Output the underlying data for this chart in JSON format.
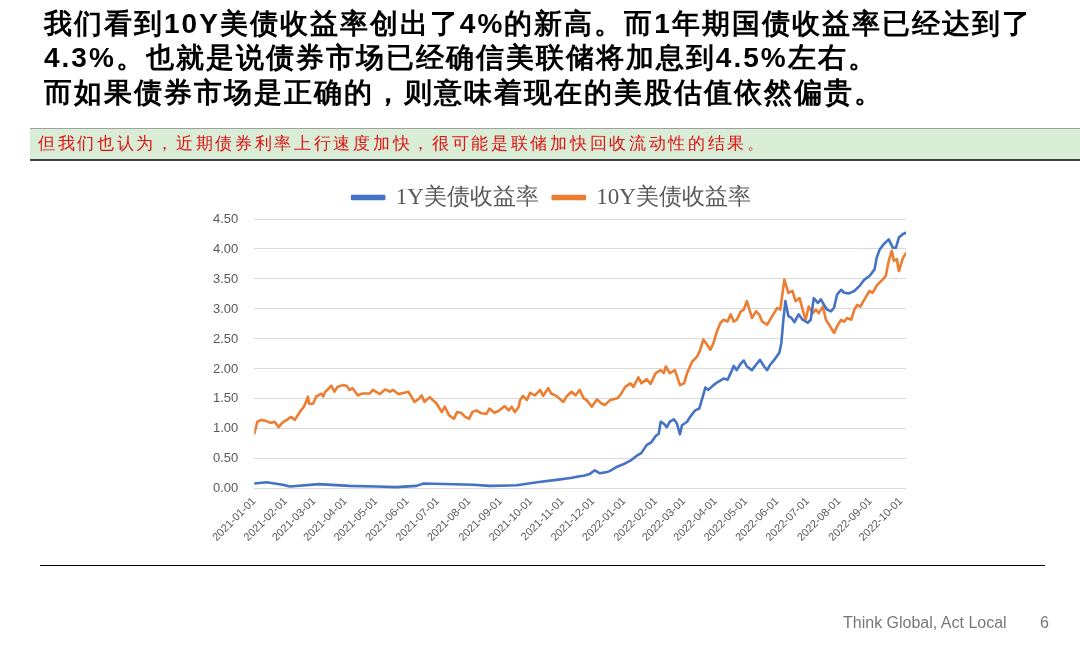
{
  "chart_data": {
    "type": "line",
    "title": "我们看到10Y美债收益率创出了4%的新高。而1年期国债收益率已经达到了4.3%。也就是说债券市场已经确信美联储将加息到4.5%左右。",
    "subtitle": "而如果债券市场是正确的，则意味着现在的美股估值依然偏贵。",
    "annotations": [
      "但我们也认为，近期债券利率上行速度加快，很可能是联储加快回收流动性的结果。",
      "Think Global, Act Local",
      "6"
    ],
    "legend": "top",
    "grid": "y",
    "xlim": [
      "2021-01-01",
      "2022-10-06"
    ],
    "xticks": [
      "2021-01-01",
      "2021-02-01",
      "2021-03-01",
      "2021-04-01",
      "2021-05-01",
      "2021-06-01",
      "2021-07-01",
      "2021-08-01",
      "2021-09-01",
      "2021-10-01",
      "2021-11-01",
      "2021-12-01",
      "2022-01-01",
      "2022-02-01",
      "2022-03-01",
      "2022-04-01",
      "2022-05-01",
      "2022-06-01",
      "2022-07-01",
      "2022-08-01",
      "2022-09-01",
      "2022-10-01"
    ],
    "ylim": [
      0,
      4.5
    ],
    "yticks": [
      {
        "value": 0,
        "label": "0.00"
      },
      {
        "value": 0.5,
        "label": "0.50"
      },
      {
        "value": 1,
        "label": "1.00"
      },
      {
        "value": 1.5,
        "label": "1.50"
      },
      {
        "value": 2,
        "label": "2.00"
      },
      {
        "value": 2.5,
        "label": "2.50"
      },
      {
        "value": 3,
        "label": "3.00"
      },
      {
        "value": 3.5,
        "label": "3.50"
      },
      {
        "value": 4,
        "label": "4.00"
      },
      {
        "value": 4.5,
        "label": "4.50"
      }
    ],
    "series": [
      {
        "name": "1Y美债收益率",
        "color": "#4472c4",
        "x": [
          "2021-01-01",
          "2021-01-13",
          "2021-01-29",
          "2021-02-05",
          "2021-03-06",
          "2021-04-05",
          "2021-05-01",
          "2021-05-21",
          "2021-06-10",
          "2021-06-17",
          "2021-08-05",
          "2021-08-21",
          "2021-09-17",
          "2021-10-07",
          "2021-10-26",
          "2021-11-09",
          "2021-11-18",
          "2021-11-22",
          "2021-11-28",
          "2021-12-03",
          "2021-12-08",
          "2021-12-15",
          "2021-12-18",
          "2021-12-25",
          "2021-12-31",
          "2022-01-07",
          "2022-01-14",
          "2022-01-18",
          "2022-01-23",
          "2022-01-28",
          "2022-02-01",
          "2022-02-04",
          "2022-02-06",
          "2022-02-09",
          "2022-02-12",
          "2022-02-15",
          "2022-02-19",
          "2022-02-22",
          "2022-02-25",
          "2022-02-27",
          "2022-03-04",
          "2022-03-07",
          "2022-03-12",
          "2022-03-16",
          "2022-03-19",
          "2022-03-22",
          "2022-03-25",
          "2022-03-30",
          "2022-04-04",
          "2022-04-09",
          "2022-04-13",
          "2022-04-16",
          "2022-04-19",
          "2022-04-22",
          "2022-04-26",
          "2022-04-29",
          "2022-05-02",
          "2022-05-07",
          "2022-05-11",
          "2022-05-15",
          "2022-05-19",
          "2022-05-22",
          "2022-05-25",
          "2022-05-29",
          "2022-06-03",
          "2022-06-05",
          "2022-06-07",
          "2022-06-09",
          "2022-06-12",
          "2022-06-15",
          "2022-06-18",
          "2022-06-22",
          "2022-06-26",
          "2022-07-01",
          "2022-07-04",
          "2022-07-07",
          "2022-07-11",
          "2022-07-14",
          "2022-07-17",
          "2022-07-20",
          "2022-07-24",
          "2022-07-27",
          "2022-07-30",
          "2022-08-03",
          "2022-08-06",
          "2022-08-11",
          "2022-08-16",
          "2022-08-21",
          "2022-08-26",
          "2022-08-31",
          "2022-09-05",
          "2022-09-07",
          "2022-09-10",
          "2022-09-14",
          "2022-09-19",
          "2022-09-23",
          "2022-09-26",
          "2022-09-29",
          "2022-10-03",
          "2022-10-06"
        ],
        "values": [
          0.09,
          0.11,
          0.07,
          0.04,
          0.08,
          0.05,
          0.04,
          0.03,
          0.05,
          0.09,
          0.07,
          0.05,
          0.06,
          0.11,
          0.15,
          0.18,
          0.21,
          0.22,
          0.25,
          0.31,
          0.26,
          0.28,
          0.3,
          0.37,
          0.41,
          0.47,
          0.56,
          0.6,
          0.73,
          0.78,
          0.88,
          0.92,
          1.12,
          1.09,
          1.03,
          1.12,
          1.16,
          1.09,
          0.91,
          1.06,
          1.12,
          1.2,
          1.31,
          1.34,
          1.51,
          1.69,
          1.65,
          1.73,
          1.79,
          1.84,
          1.82,
          1.93,
          2.05,
          1.98,
          2.09,
          2.14,
          2.04,
          1.98,
          2.07,
          2.15,
          2.04,
          1.98,
          2.07,
          2.15,
          2.27,
          2.43,
          2.82,
          3.13,
          2.88,
          2.85,
          2.78,
          2.91,
          2.82,
          2.77,
          2.82,
          3.18,
          3.1,
          3.16,
          3.07,
          2.99,
          2.96,
          3.02,
          3.24,
          3.32,
          3.27,
          3.26,
          3.3,
          3.38,
          3.49,
          3.55,
          3.66,
          3.85,
          3.99,
          4.08,
          4.16,
          4.02,
          4.02,
          4.19,
          4.25,
          4.27
        ]
      },
      {
        "name": "10Y美债收益率",
        "color": "#ed7d31",
        "x": [
          "2021-01-01",
          "2021-01-04",
          "2021-01-08",
          "2021-01-13",
          "2021-01-17",
          "2021-01-21",
          "2021-01-25",
          "2021-01-29",
          "2021-02-03",
          "2021-02-06",
          "2021-02-10",
          "2021-02-16",
          "2021-02-19",
          "2021-02-23",
          "2021-02-24",
          "2021-02-28",
          "2021-03-03",
          "2021-03-08",
          "2021-03-10",
          "2021-03-12",
          "2021-03-14",
          "2021-03-18",
          "2021-03-21",
          "2021-03-24",
          "2021-03-29",
          "2021-04-02",
          "2021-04-05",
          "2021-04-08",
          "2021-04-13",
          "2021-04-18",
          "2021-04-25",
          "2021-04-28",
          "2021-05-05",
          "2021-05-10",
          "2021-05-15",
          "2021-05-18",
          "2021-05-23",
          "2021-05-28",
          "2021-06-02",
          "2021-06-05",
          "2021-06-08",
          "2021-06-13",
          "2021-06-15",
          "2021-06-18",
          "2021-06-23",
          "2021-06-30",
          "2021-07-05",
          "2021-07-08",
          "2021-07-12",
          "2021-07-17",
          "2021-07-20",
          "2021-07-24",
          "2021-07-28",
          "2021-08-01",
          "2021-08-04",
          "2021-08-08",
          "2021-08-13",
          "2021-08-18",
          "2021-08-21",
          "2021-08-26",
          "2021-08-31",
          "2021-09-05",
          "2021-09-09",
          "2021-09-12",
          "2021-09-15",
          "2021-09-19",
          "2021-09-20",
          "2021-09-23",
          "2021-09-27",
          "2021-09-30",
          "2021-10-05",
          "2021-10-10",
          "2021-10-13",
          "2021-10-18",
          "2021-10-21",
          "2021-10-26",
          "2021-11-02",
          "2021-11-05",
          "2021-11-10",
          "2021-11-14",
          "2021-11-18",
          "2021-11-22",
          "2021-11-25",
          "2021-11-30",
          "2021-12-05",
          "2021-12-10",
          "2021-12-13",
          "2021-12-18",
          "2021-12-25",
          "2021-12-28",
          "2022-01-02",
          "2022-01-07",
          "2022-01-10",
          "2022-01-15",
          "2022-01-18",
          "2022-01-23",
          "2022-01-27",
          "2022-02-01",
          "2022-02-06",
          "2022-02-09",
          "2022-02-11",
          "2022-02-15",
          "2022-02-20",
          "2022-02-25",
          "2022-03-01",
          "2022-03-04",
          "2022-03-09",
          "2022-03-14",
          "2022-03-17",
          "2022-03-20",
          "2022-03-24",
          "2022-03-27",
          "2022-03-30",
          "2022-04-03",
          "2022-04-06",
          "2022-04-09",
          "2022-04-13",
          "2022-04-16",
          "2022-04-19",
          "2022-04-22",
          "2022-04-26",
          "2022-04-29",
          "2022-05-02",
          "2022-05-04",
          "2022-05-07",
          "2022-05-11",
          "2022-05-14",
          "2022-05-17",
          "2022-05-22",
          "2022-05-27",
          "2022-06-01",
          "2022-06-04",
          "2022-06-08",
          "2022-06-12",
          "2022-06-16",
          "2022-06-19",
          "2022-06-23",
          "2022-06-26",
          "2022-06-29",
          "2022-07-02",
          "2022-07-06",
          "2022-07-09",
          "2022-07-12",
          "2022-07-16",
          "2022-07-19",
          "2022-07-22",
          "2022-07-27",
          "2022-07-30",
          "2022-08-03",
          "2022-08-06",
          "2022-08-09",
          "2022-08-13",
          "2022-08-16",
          "2022-08-19",
          "2022-08-22",
          "2022-08-26",
          "2022-08-31",
          "2022-09-03",
          "2022-09-08",
          "2022-09-13",
          "2022-09-16",
          "2022-09-19",
          "2022-09-22",
          "2022-09-24",
          "2022-09-27",
          "2022-09-29",
          "2022-10-03",
          "2022-10-06"
        ],
        "values": [
          0.92,
          1.12,
          1.15,
          1.13,
          1.1,
          1.12,
          1.03,
          1.11,
          1.16,
          1.2,
          1.15,
          1.31,
          1.37,
          1.54,
          1.42,
          1.42,
          1.54,
          1.59,
          1.54,
          1.62,
          1.65,
          1.72,
          1.62,
          1.7,
          1.73,
          1.72,
          1.65,
          1.68,
          1.56,
          1.59,
          1.59,
          1.65,
          1.58,
          1.66,
          1.62,
          1.65,
          1.58,
          1.6,
          1.62,
          1.54,
          1.45,
          1.51,
          1.56,
          1.45,
          1.53,
          1.42,
          1.28,
          1.37,
          1.23,
          1.17,
          1.28,
          1.27,
          1.2,
          1.17,
          1.28,
          1.31,
          1.26,
          1.25,
          1.34,
          1.27,
          1.31,
          1.38,
          1.31,
          1.37,
          1.28,
          1.37,
          1.47,
          1.55,
          1.48,
          1.6,
          1.56,
          1.65,
          1.55,
          1.68,
          1.59,
          1.55,
          1.45,
          1.54,
          1.62,
          1.56,
          1.65,
          1.51,
          1.48,
          1.37,
          1.49,
          1.42,
          1.4,
          1.48,
          1.51,
          1.56,
          1.7,
          1.76,
          1.7,
          1.86,
          1.76,
          1.83,
          1.75,
          1.93,
          1.98,
          1.93,
          2.04,
          1.93,
          1.98,
          1.73,
          1.76,
          1.93,
          2.12,
          2.21,
          2.32,
          2.49,
          2.4,
          2.32,
          2.43,
          2.65,
          2.77,
          2.82,
          2.79,
          2.91,
          2.79,
          2.82,
          2.96,
          2.99,
          3.13,
          3.02,
          2.85,
          2.96,
          2.91,
          2.79,
          2.74,
          2.88,
          3.02,
          2.99,
          3.49,
          3.27,
          3.3,
          3.13,
          3.18,
          2.99,
          2.82,
          3.04,
          2.93,
          2.99,
          2.93,
          3.04,
          2.82,
          2.74,
          2.6,
          2.71,
          2.82,
          2.79,
          2.85,
          2.82,
          2.99,
          3.07,
          3.04,
          3.16,
          3.3,
          3.27,
          3.41,
          3.49,
          3.55,
          3.8,
          3.97,
          3.8,
          3.83,
          3.63,
          3.85,
          3.93
        ]
      }
    ]
  }
}
